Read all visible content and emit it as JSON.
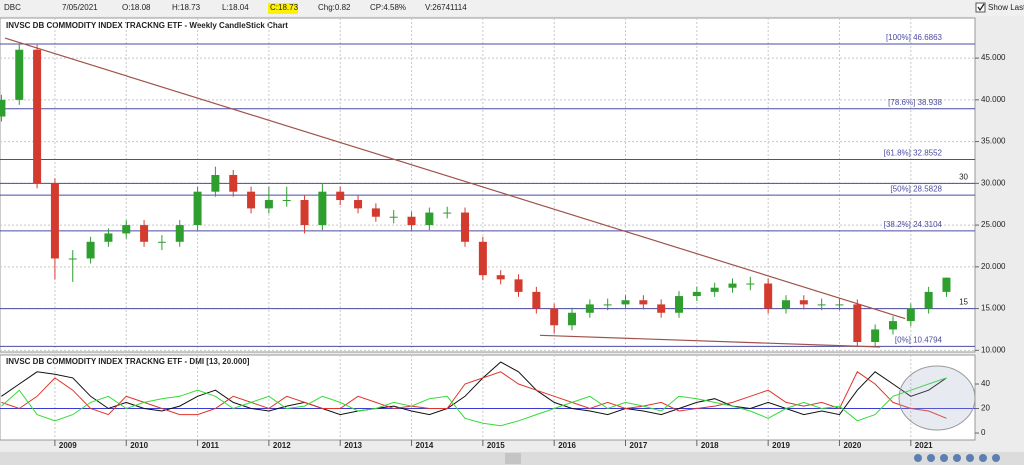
{
  "toolbar": {
    "symbol": "DBC",
    "date": "7/05/2021",
    "open": "O:18.08",
    "high": "H:18.73",
    "low": "L:18.04",
    "close": "C:18.73",
    "change": "Chg:0.82",
    "change_pct": "CP:4.58%",
    "volume": "V:26741114",
    "show_last": "Show Last"
  },
  "chart_data": [
    {
      "type": "candlestick",
      "title": "INVSC DB COMMODITY INDEX TRACKNG ETF - Weekly CandleStick Chart",
      "x": [
        2008.25,
        2008.5,
        2008.75,
        2009,
        2009.25,
        2009.5,
        2009.75,
        2010,
        2010.25,
        2010.5,
        2010.75,
        2011,
        2011.25,
        2011.5,
        2011.75,
        2012,
        2012.25,
        2012.5,
        2012.75,
        2013,
        2013.25,
        2013.5,
        2013.75,
        2014,
        2014.25,
        2014.5,
        2014.75,
        2015,
        2015.25,
        2015.5,
        2015.75,
        2016,
        2016.25,
        2016.5,
        2016.75,
        2017,
        2017.25,
        2017.5,
        2017.75,
        2018,
        2018.25,
        2018.5,
        2018.75,
        2019,
        2019.25,
        2019.5,
        2019.75,
        2020,
        2020.25,
        2020.5,
        2020.75,
        2021,
        2021.25,
        2021.5
      ],
      "open": [
        38,
        40,
        46,
        30,
        21,
        21,
        23,
        24,
        25,
        23,
        23,
        25,
        29,
        31,
        29,
        27,
        28,
        28,
        25,
        29,
        28,
        27,
        26,
        26,
        25,
        26.5,
        26.5,
        23,
        19,
        18.5,
        17,
        15,
        13,
        14.5,
        15.5,
        15.5,
        16,
        15.5,
        14.5,
        16.5,
        17,
        17.5,
        18,
        18,
        15,
        16,
        15.5,
        15.5,
        15.5,
        11,
        12.5,
        13.5,
        15,
        17
      ],
      "high": [
        40.6,
        46.7,
        46.6,
        30.6,
        22,
        23.6,
        24.6,
        25.6,
        25.6,
        23.8,
        25.6,
        29.6,
        32,
        31.6,
        29.6,
        29.6,
        29.6,
        28.6,
        30,
        29.6,
        28.6,
        27.6,
        26.8,
        26.6,
        27.1,
        27.2,
        27.1,
        23.6,
        19.6,
        19.1,
        17.6,
        15.6,
        15.1,
        16.1,
        16.2,
        16.6,
        16.6,
        16.1,
        17.1,
        17.6,
        18.1,
        18.6,
        18.8,
        18.6,
        16.6,
        16.6,
        16.2,
        16.2,
        16.1,
        13.1,
        14.1,
        15.6,
        17.6,
        18.73
      ],
      "low": [
        37.4,
        39.4,
        29.4,
        18.5,
        18.2,
        20.4,
        22.4,
        23.4,
        22.4,
        22,
        22.4,
        24.4,
        28.4,
        28.4,
        26.4,
        26.4,
        27.2,
        24,
        24.4,
        27.4,
        26.4,
        25.4,
        25.2,
        24.4,
        24.4,
        25.8,
        22.4,
        18.4,
        17.9,
        16.4,
        14.4,
        12,
        12.4,
        13.9,
        14.8,
        14.9,
        14.9,
        13.9,
        13.9,
        15.9,
        16.4,
        16.9,
        17.2,
        14.4,
        14.4,
        14.9,
        14.8,
        14.8,
        10.5,
        10.5,
        11.9,
        12.9,
        14.4,
        16.4
      ],
      "close": [
        40,
        46,
        30,
        21,
        21,
        23,
        24,
        25,
        23,
        23,
        25,
        29,
        31,
        29,
        27,
        28,
        28,
        25,
        29,
        28,
        27,
        26,
        26,
        25,
        26.5,
        26.5,
        23,
        19,
        18.5,
        17,
        15,
        13,
        14.5,
        15.5,
        15.5,
        16,
        15.5,
        14.5,
        16.5,
        17,
        17.5,
        18,
        18,
        15,
        16,
        15.5,
        15.5,
        15.5,
        11,
        12.5,
        13.5,
        15,
        17,
        18.7
      ],
      "up_color": "#2e9e2e",
      "down_color": "#d43b2f",
      "xlim": [
        2008.23,
        2021.9
      ],
      "xticks": [
        2009,
        2010,
        2011,
        2012,
        2013,
        2014,
        2015,
        2016,
        2017,
        2018,
        2019,
        2020,
        2021
      ],
      "ylim": [
        9.8,
        49.8
      ],
      "yticks": [
        {
          "value": 10,
          "label": "10.000"
        },
        {
          "value": 15,
          "label": "15.000"
        },
        {
          "value": 20,
          "label": "20.000"
        },
        {
          "value": 25,
          "label": "25.000"
        },
        {
          "value": 30,
          "label": "30.000"
        },
        {
          "value": 35,
          "label": "35.000"
        },
        {
          "value": 40,
          "label": "40.000"
        },
        {
          "value": 45,
          "label": "45.000"
        }
      ],
      "grid": true,
      "levels": [
        {
          "value": 46.6863,
          "label": "[100%] 46.6863"
        },
        {
          "value": 38.938,
          "label": "[78.6%] 38.938"
        },
        {
          "value": 32.8552,
          "label": "[61.8%] 32.8552"
        },
        {
          "value": 28.5828,
          "label": "[50%] 28.5828"
        },
        {
          "value": 24.3104,
          "label": "[38.2%] 24.3104"
        },
        {
          "value": 10.4794,
          "label": "[0%] 10.4794"
        }
      ],
      "level_color": "#4b4ba0",
      "hlines": [
        15,
        30
      ],
      "trendlines": [
        {
          "x": [
            2008.3,
            2020.92
          ],
          "y": [
            47.4,
            13.8
          ]
        },
        {
          "x": [
            2015.8,
            2020.57
          ],
          "y": [
            11.8,
            10.4
          ]
        }
      ],
      "trend_color": "#a0524a"
    },
    {
      "type": "line",
      "title": "INVSC DB COMMODITY INDEX TRACKNG ETF - DMI [13, 20.000]",
      "x": [
        2008.25,
        2008.5,
        2008.75,
        2009,
        2009.25,
        2009.5,
        2009.75,
        2010,
        2010.25,
        2010.5,
        2010.75,
        2011,
        2011.25,
        2011.5,
        2011.75,
        2012,
        2012.25,
        2012.5,
        2012.75,
        2013,
        2013.25,
        2013.5,
        2013.75,
        2014,
        2014.25,
        2014.5,
        2014.75,
        2015,
        2015.25,
        2015.5,
        2015.75,
        2016,
        2016.25,
        2016.5,
        2016.75,
        2017,
        2017.25,
        2017.5,
        2017.75,
        2018,
        2018.25,
        2018.5,
        2018.75,
        2019,
        2019.25,
        2019.5,
        2019.75,
        2020,
        2020.25,
        2020.5,
        2020.75,
        2021,
        2021.25,
        2021.5
      ],
      "series": [
        {
          "color": "#111111",
          "values": [
            30,
            40,
            50,
            48,
            45,
            30,
            20,
            25,
            20,
            18,
            22,
            30,
            35,
            25,
            20,
            18,
            22,
            25,
            20,
            15,
            18,
            20,
            22,
            18,
            15,
            20,
            30,
            45,
            58,
            50,
            35,
            25,
            20,
            18,
            15,
            20,
            18,
            15,
            20,
            25,
            28,
            22,
            20,
            25,
            20,
            15,
            18,
            15,
            35,
            50,
            40,
            30,
            35,
            45
          ]
        },
        {
          "color": "#e0342a",
          "values": [
            25,
            20,
            30,
            45,
            35,
            20,
            15,
            30,
            25,
            20,
            15,
            15,
            20,
            30,
            25,
            20,
            30,
            25,
            20,
            20,
            30,
            25,
            20,
            22,
            20,
            20,
            40,
            45,
            50,
            40,
            35,
            30,
            25,
            20,
            25,
            20,
            22,
            25,
            18,
            20,
            22,
            25,
            30,
            35,
            25,
            22,
            25,
            20,
            50,
            40,
            25,
            20,
            18,
            12
          ]
        },
        {
          "color": "#33dd33",
          "values": [
            22,
            35,
            15,
            10,
            15,
            25,
            30,
            20,
            25,
            28,
            30,
            35,
            30,
            20,
            25,
            30,
            20,
            22,
            30,
            25,
            18,
            20,
            25,
            22,
            28,
            30,
            12,
            8,
            6,
            10,
            15,
            20,
            25,
            30,
            20,
            25,
            22,
            18,
            30,
            28,
            25,
            22,
            18,
            12,
            20,
            25,
            20,
            22,
            10,
            15,
            30,
            35,
            40,
            45
          ]
        }
      ],
      "xlim": [
        2008.23,
        2021.9
      ],
      "ylim": [
        -5.7,
        63.7
      ],
      "yticks": [
        0,
        20,
        40
      ],
      "level": 20,
      "level_color": "#3b3bd0"
    }
  ]
}
